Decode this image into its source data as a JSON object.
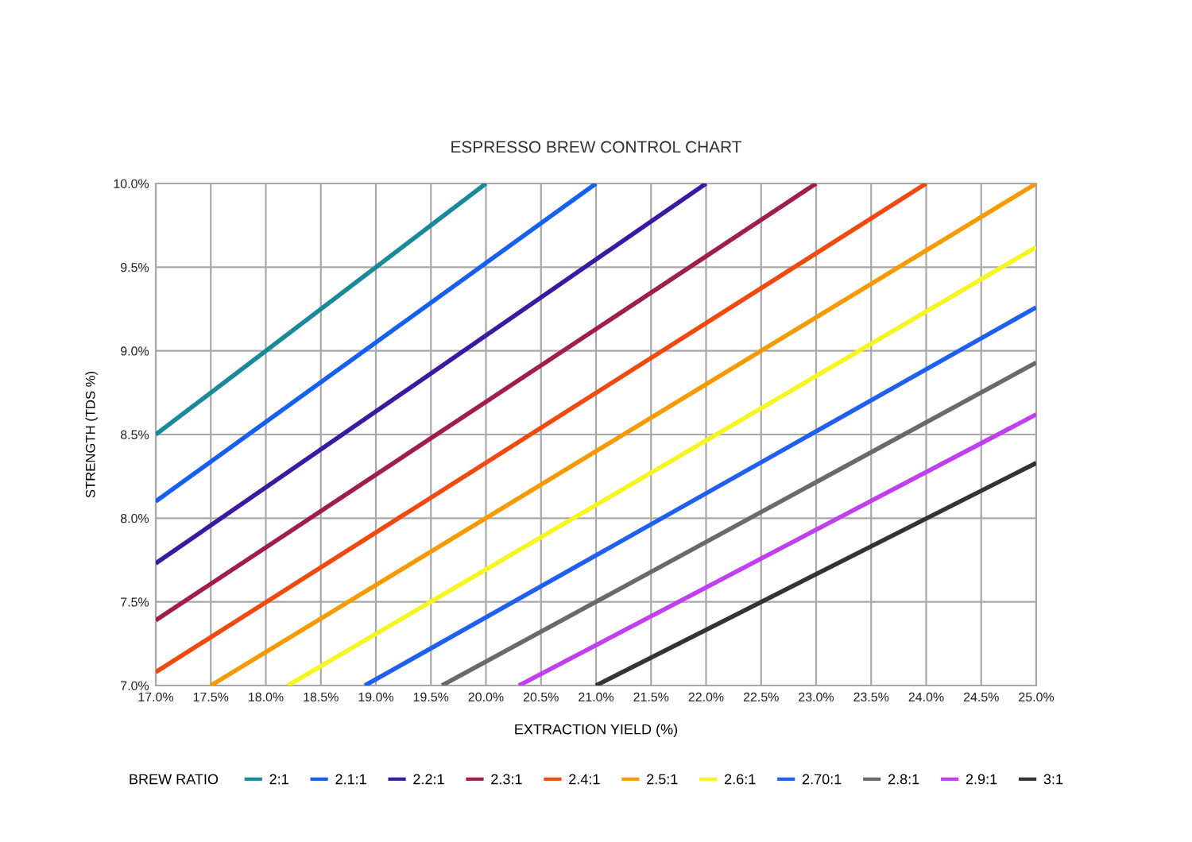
{
  "chart_data": {
    "type": "line",
    "title": "ESPRESSO BREW CONTROL CHART",
    "xlabel": "EXTRACTION YIELD (%)",
    "ylabel": "STRENGTH (TDS %)",
    "legend_title": "BREW RATIO",
    "xlim": [
      17.0,
      25.0
    ],
    "xticks": [
      {
        "value": 17.0,
        "label": "17.0%"
      },
      {
        "value": 17.5,
        "label": "17.5%"
      },
      {
        "value": 18.0,
        "label": "18.0%"
      },
      {
        "value": 18.5,
        "label": "18.5%"
      },
      {
        "value": 19.0,
        "label": "19.0%"
      },
      {
        "value": 19.5,
        "label": "19.5%"
      },
      {
        "value": 20.0,
        "label": "20.0%"
      },
      {
        "value": 20.5,
        "label": "20.5%"
      },
      {
        "value": 21.0,
        "label": "21.0%"
      },
      {
        "value": 21.5,
        "label": "21.5%"
      },
      {
        "value": 22.0,
        "label": "22.0%"
      },
      {
        "value": 22.5,
        "label": "22.5%"
      },
      {
        "value": 23.0,
        "label": "23.0%"
      },
      {
        "value": 23.5,
        "label": "23.5%"
      },
      {
        "value": 24.0,
        "label": "24.0%"
      },
      {
        "value": 24.5,
        "label": "24.5%"
      },
      {
        "value": 25.0,
        "label": "25.0%"
      }
    ],
    "ylim": [
      7.0,
      10.0
    ],
    "yticks": [
      {
        "value": 7.0,
        "label": "7.0%"
      },
      {
        "value": 7.5,
        "label": "7.5%"
      },
      {
        "value": 8.0,
        "label": "8.0%"
      },
      {
        "value": 8.5,
        "label": "8.5%"
      },
      {
        "value": 9.0,
        "label": "9.0%"
      },
      {
        "value": 9.5,
        "label": "9.5%"
      },
      {
        "value": 10.0,
        "label": "10.0%"
      }
    ],
    "grid": true,
    "legend": "bottom",
    "marker": "none",
    "line_style": "solid",
    "series": [
      {
        "name": "2:1",
        "color": "#1a8a9a",
        "x": [
          17.0,
          20.0
        ],
        "values": [
          8.5,
          10.0
        ]
      },
      {
        "name": "2.1:1",
        "color": "#1560f0",
        "x": [
          17.0,
          21.0
        ],
        "values": [
          8.1,
          10.0
        ]
      },
      {
        "name": "2.2:1",
        "color": "#3a1aa0",
        "x": [
          17.0,
          22.0
        ],
        "values": [
          7.73,
          10.0
        ]
      },
      {
        "name": "2.3:1",
        "color": "#a01d50",
        "x": [
          17.0,
          23.0
        ],
        "values": [
          7.39,
          10.0
        ]
      },
      {
        "name": "2.4:1",
        "color": "#f04a10",
        "x": [
          17.0,
          24.0
        ],
        "values": [
          7.08,
          10.0
        ]
      },
      {
        "name": "2.5:1",
        "color": "#f59a00",
        "x": [
          17.5,
          25.0
        ],
        "values": [
          7.0,
          10.0
        ]
      },
      {
        "name": "2.6:1",
        "color": "#f5f520",
        "x": [
          18.2,
          25.0
        ],
        "values": [
          7.0,
          9.62
        ]
      },
      {
        "name": "2.70:1",
        "color": "#2060f0",
        "x": [
          18.9,
          25.0
        ],
        "values": [
          7.0,
          9.26
        ]
      },
      {
        "name": "2.8:1",
        "color": "#6a6a6a",
        "x": [
          19.6,
          25.0
        ],
        "values": [
          7.0,
          8.93
        ]
      },
      {
        "name": "2.9:1",
        "color": "#c040f0",
        "x": [
          20.3,
          25.0
        ],
        "values": [
          7.0,
          8.62
        ]
      },
      {
        "name": "3:1",
        "color": "#333333",
        "x": [
          21.0,
          25.0
        ],
        "values": [
          7.0,
          8.33
        ]
      }
    ]
  }
}
